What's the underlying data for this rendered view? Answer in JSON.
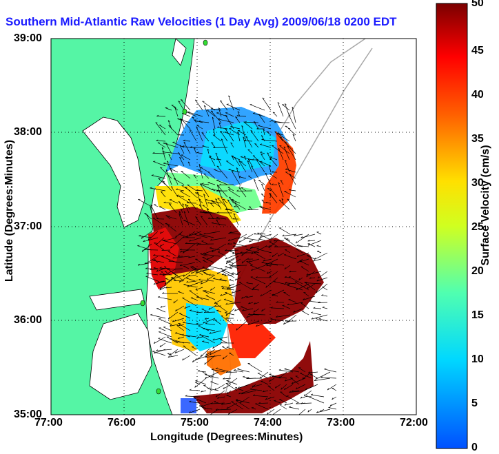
{
  "title": "Southern Mid-Atlantic Raw Velocities (1 Day Avg) 2009/06/18 0200 EDT",
  "xlabel": "Longitude (Degrees:Minutes)",
  "ylabel": "Latitude (Degrees:Minutes)",
  "colorbar": {
    "label": "Surface Velocity (cm/s)",
    "ticks": [
      "0",
      "5",
      "10",
      "15",
      "20",
      "25",
      "30",
      "35",
      "40",
      "45",
      "50"
    ],
    "range": [
      0,
      50
    ]
  },
  "x_ticks": [
    "77:00",
    "76:00",
    "75:00",
    "74:00",
    "73:00",
    "72:00"
  ],
  "y_ticks": [
    "39:00",
    "38:00",
    "37:00",
    "36:00",
    "35:00"
  ],
  "colors": {
    "land": "#55f5a5",
    "title": "#1a1aff"
  }
}
